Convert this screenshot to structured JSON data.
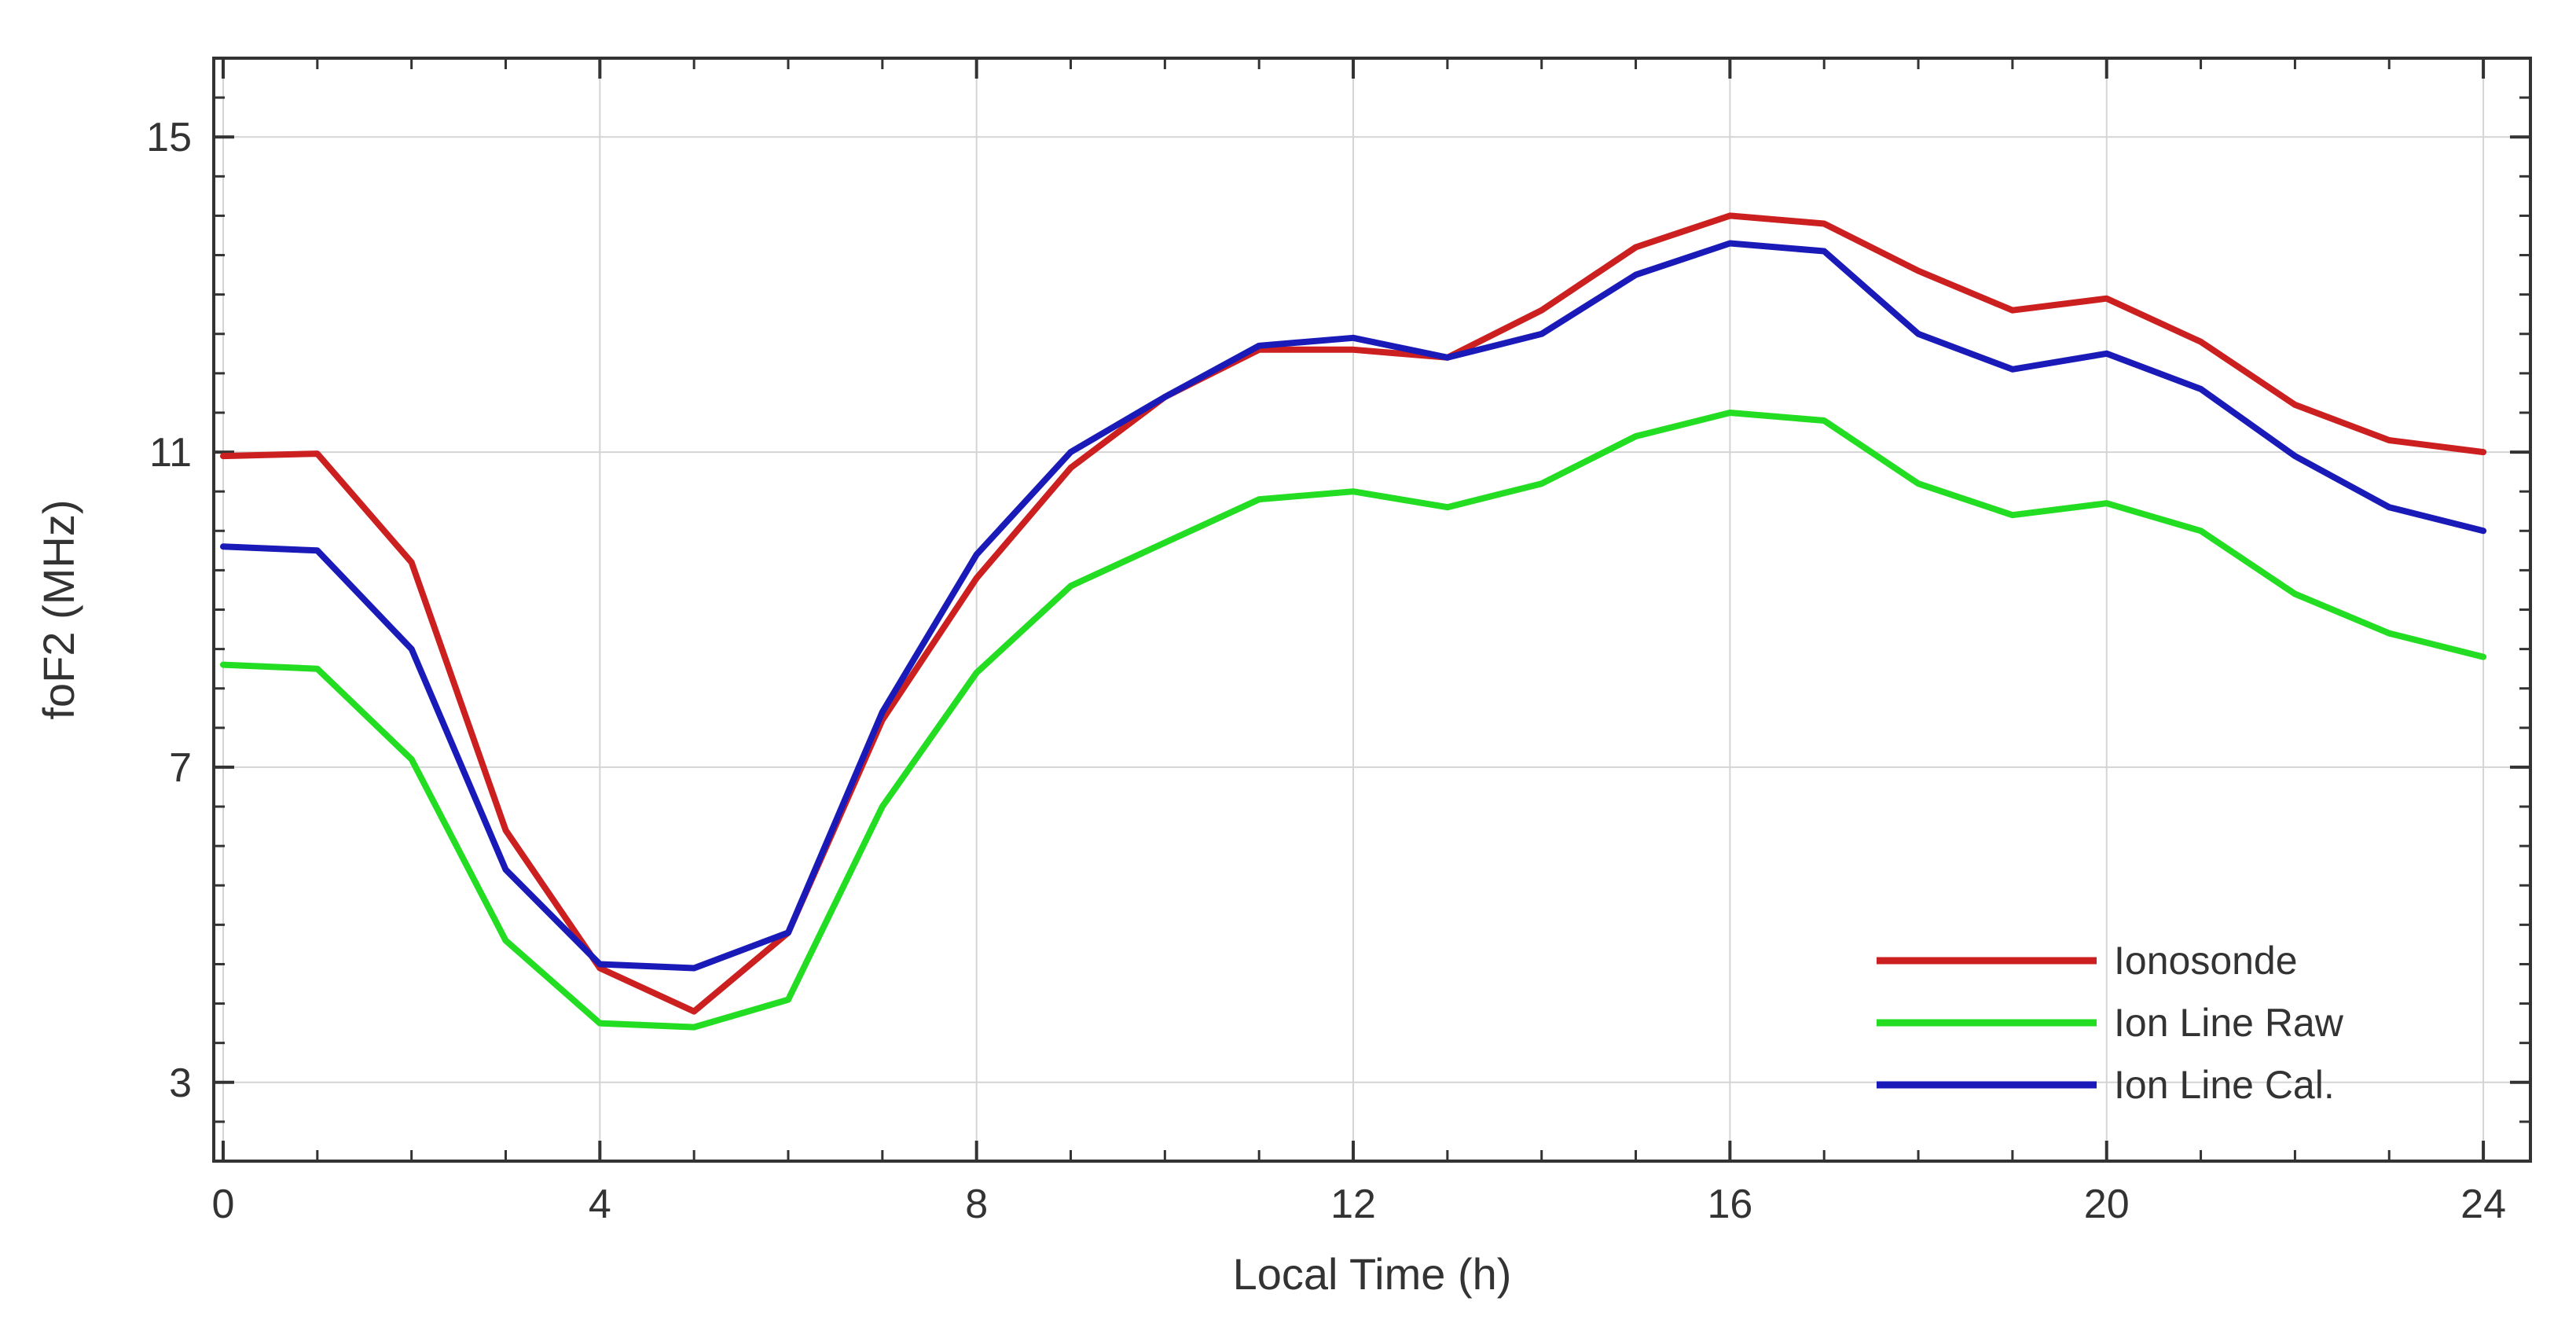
{
  "chart_data": {
    "type": "line",
    "title": "",
    "xlabel": "Local Time (h)",
    "ylabel": "foF2 (MHz)",
    "xlim": [
      -0.1,
      24.5
    ],
    "ylim": [
      2.0,
      16.0
    ],
    "xticks": [
      0,
      4,
      8,
      12,
      16,
      20,
      24
    ],
    "yticks": [
      3,
      7,
      11,
      15
    ],
    "grid": true,
    "legend_position": "bottom-right",
    "x": [
      0,
      1,
      2,
      3,
      4,
      5,
      6,
      7,
      8,
      9,
      10,
      11,
      12,
      13,
      14,
      15,
      16,
      17,
      18,
      19,
      20,
      21,
      22,
      23,
      24
    ],
    "series": [
      {
        "name": "Ionosonde",
        "color": "#cc1f1f",
        "values": [
          10.95,
          10.98,
          9.6,
          6.2,
          4.45,
          3.9,
          4.9,
          7.6,
          9.4,
          10.8,
          11.7,
          12.3,
          12.3,
          12.2,
          12.8,
          13.6,
          14.0,
          13.9,
          13.3,
          12.8,
          12.95,
          12.4,
          11.6,
          11.15,
          11.0
        ]
      },
      {
        "name": "Ion Line Raw",
        "color": "#22dd22",
        "values": [
          8.3,
          8.25,
          7.1,
          4.8,
          3.75,
          3.7,
          4.05,
          6.5,
          8.2,
          9.3,
          9.85,
          10.4,
          10.5,
          10.3,
          10.6,
          11.2,
          11.5,
          11.4,
          10.6,
          10.2,
          10.35,
          10.0,
          9.2,
          8.7,
          8.4
        ]
      },
      {
        "name": "Ion Line Cal.",
        "color": "#1a1ab8",
        "values": [
          9.8,
          9.75,
          8.5,
          5.7,
          4.5,
          4.45,
          4.9,
          7.7,
          9.7,
          11.0,
          11.7,
          12.35,
          12.45,
          12.2,
          12.5,
          13.25,
          13.65,
          13.55,
          12.5,
          12.05,
          12.25,
          11.8,
          10.95,
          10.3,
          10.0
        ]
      }
    ]
  }
}
